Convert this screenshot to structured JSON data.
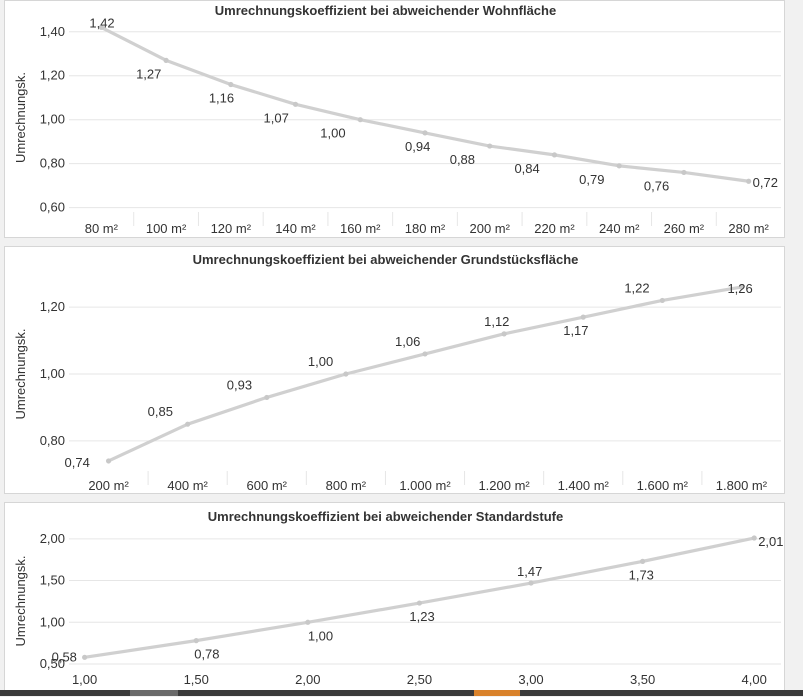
{
  "colors": {
    "line": "#d0d0d0",
    "grid": "#e6e6e6",
    "text": "#333333"
  },
  "chart_data": [
    {
      "type": "line",
      "title": "Umrechnungskoeffizient bei abweichender Wohnfläche",
      "ylabel": "Umrechnungsk.",
      "xlabel": "",
      "categories": [
        "80 m²",
        "100 m²",
        "120 m²",
        "140 m²",
        "160 m²",
        "180 m²",
        "200 m²",
        "220 m²",
        "240 m²",
        "260 m²",
        "280 m²"
      ],
      "values": [
        1.42,
        1.27,
        1.16,
        1.07,
        1.0,
        0.94,
        0.88,
        0.84,
        0.79,
        0.76,
        0.72
      ],
      "value_labels": [
        "1,42",
        "1,27",
        "1,16",
        "1,07",
        "1,00",
        "0,94",
        "0,88",
        "0,84",
        "0,79",
        "0,76",
        "0,72"
      ],
      "yticks": [
        0.6,
        0.8,
        1.0,
        1.2,
        1.4
      ],
      "ytick_labels": [
        "0,60",
        "0,80",
        "1,00",
        "1,20",
        "1,40"
      ],
      "ylim": [
        0.58,
        1.44
      ],
      "grid": true
    },
    {
      "type": "line",
      "title": "Umrechnungskoeffizient bei abweichender Grundstücksfläche",
      "ylabel": "Umrechnungsk.",
      "xlabel": "",
      "categories": [
        "200 m²",
        "400 m²",
        "600 m²",
        "800 m²",
        "1.000 m²",
        "1.200 m²",
        "1.400 m²",
        "1.600 m²",
        "1.800 m²"
      ],
      "values": [
        0.74,
        0.85,
        0.93,
        1.0,
        1.06,
        1.12,
        1.17,
        1.22,
        1.26
      ],
      "value_labels": [
        "0,74",
        "0,85",
        "0,93",
        "1,00",
        "1,06",
        "1,12",
        "1,17",
        "1,22",
        "1,26"
      ],
      "yticks": [
        0.8,
        1.0,
        1.2
      ],
      "ytick_labels": [
        "0,80",
        "1,00",
        "1,20"
      ],
      "ylim": [
        0.71,
        1.29
      ],
      "grid": true
    },
    {
      "type": "line",
      "title": "Umrechnungskoeffizient bei abweichender Standardstufe",
      "ylabel": "Umrechnungsk.",
      "xlabel": "",
      "categories": [
        "1,00",
        "1,50",
        "2,00",
        "2,50",
        "3,00",
        "3,50",
        "4,00"
      ],
      "x": [
        1.0,
        1.5,
        2.0,
        2.5,
        3.0,
        3.5,
        4.0
      ],
      "values": [
        0.58,
        0.78,
        1.0,
        1.23,
        1.47,
        1.73,
        2.01
      ],
      "value_labels": [
        "0,58",
        "0,78",
        "1,00",
        "1,23",
        "1,47",
        "1,73",
        "2,01"
      ],
      "yticks": [
        0.5,
        1.0,
        1.5,
        2.0
      ],
      "ytick_labels": [
        "0,50",
        "1,00",
        "1,50",
        "2,00"
      ],
      "ylim": [
        0.44,
        2.07
      ],
      "grid": true
    }
  ]
}
